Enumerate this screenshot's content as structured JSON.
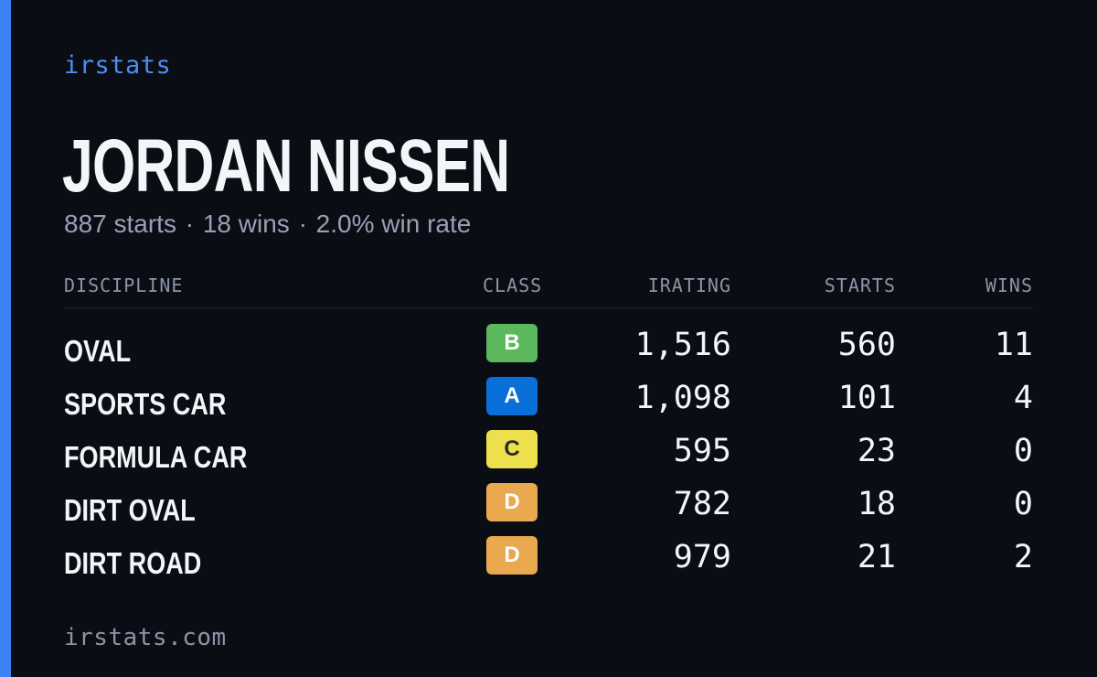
{
  "brand": "irstats",
  "driver": {
    "name": "JORDAN NISSEN",
    "starts_text": "887 starts",
    "wins_text": "18 wins",
    "win_rate_text": "2.0% win rate",
    "separator": "·"
  },
  "table": {
    "headers": {
      "discipline": "DISCIPLINE",
      "class": "CLASS",
      "irating": "IRATING",
      "starts": "STARTS",
      "wins": "WINS"
    },
    "rows": [
      {
        "discipline": "OVAL",
        "class": "B",
        "class_color": "#5cb85c",
        "class_text_color": "#ffffff",
        "irating": "1,516",
        "starts": "560",
        "wins": "11"
      },
      {
        "discipline": "SPORTS CAR",
        "class": "A",
        "class_color": "#0a6fd8",
        "class_text_color": "#ffffff",
        "irating": "1,098",
        "starts": "101",
        "wins": "4"
      },
      {
        "discipline": "FORMULA CAR",
        "class": "C",
        "class_color": "#ece14c",
        "class_text_color": "#2a2a2a",
        "irating": "595",
        "starts": "23",
        "wins": "0"
      },
      {
        "discipline": "DIRT OVAL",
        "class": "D",
        "class_color": "#eaa84f",
        "class_text_color": "#ffffff",
        "irating": "782",
        "starts": "18",
        "wins": "0"
      },
      {
        "discipline": "DIRT ROAD",
        "class": "D",
        "class_color": "#eaa84f",
        "class_text_color": "#ffffff",
        "irating": "979",
        "starts": "21",
        "wins": "2"
      }
    ]
  },
  "footer": "irstats.com",
  "colors": {
    "background": "#0a0d14",
    "accent": "#3b82f6",
    "muted_text": "#97a1b5"
  }
}
